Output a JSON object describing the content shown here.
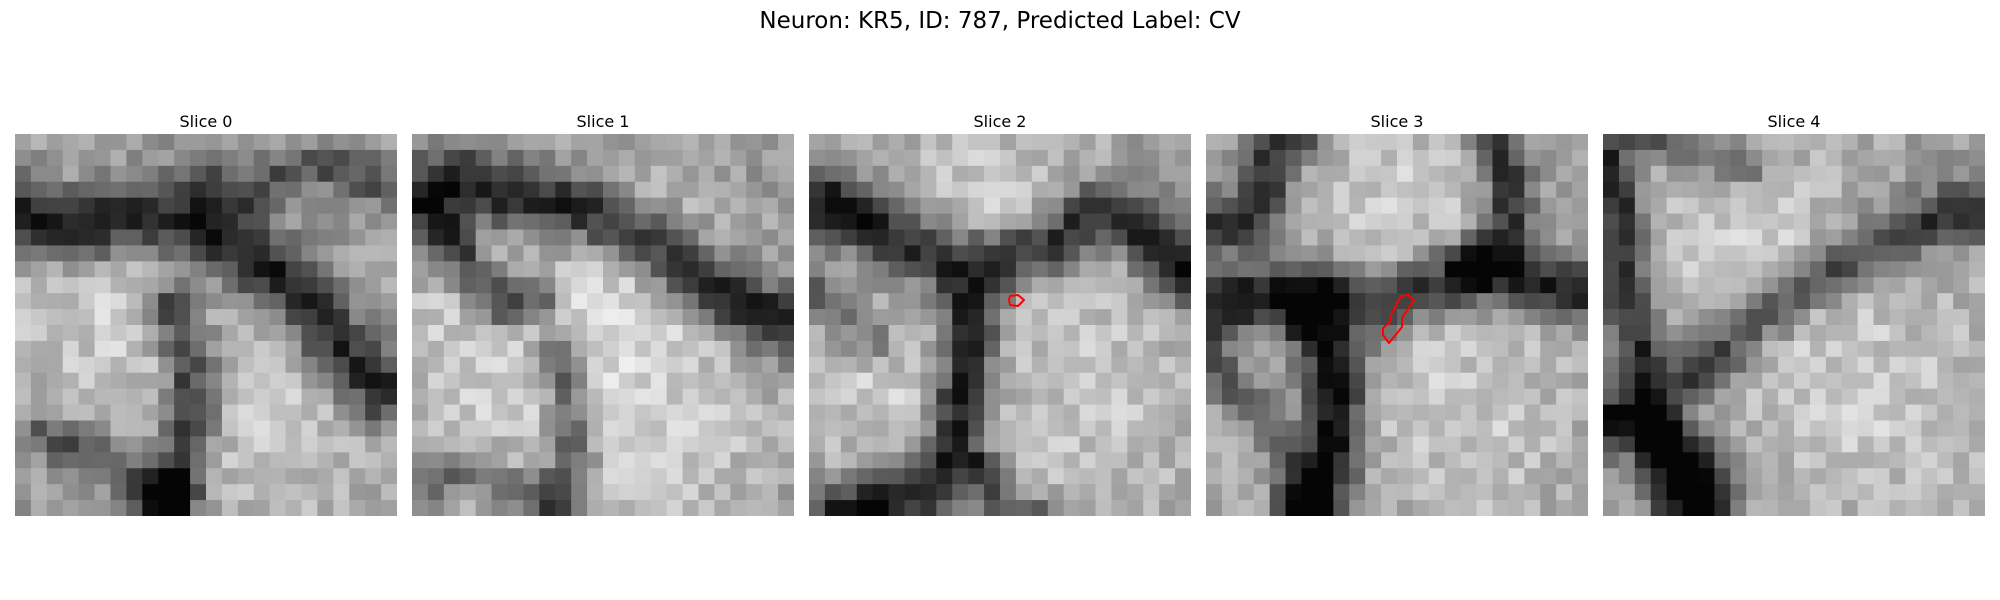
{
  "figure": {
    "title": "Neuron: KR5, ID: 787, Predicted Label: CV"
  },
  "panels": [
    {
      "title": "Slice 0",
      "has_outline": false
    },
    {
      "title": "Slice 1",
      "has_outline": false
    },
    {
      "title": "Slice 2",
      "has_outline": true
    },
    {
      "title": "Slice 3",
      "has_outline": true
    },
    {
      "title": "Slice 4",
      "has_outline": false
    }
  ],
  "colors": {
    "outline": "#ff0000"
  }
}
